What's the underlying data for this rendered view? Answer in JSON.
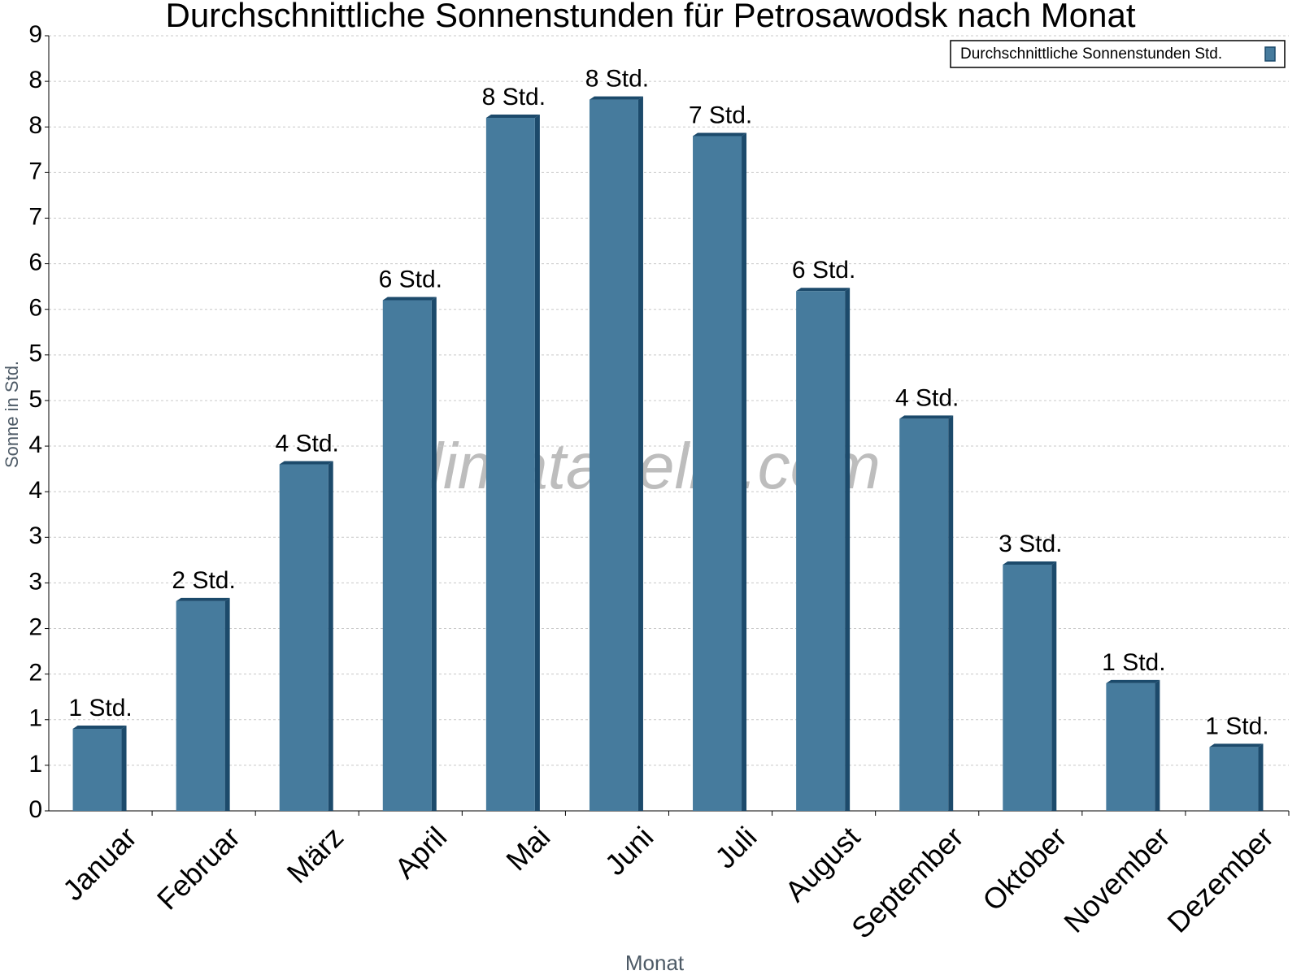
{
  "chart_data": {
    "type": "bar",
    "title": "Durchschnittliche Sonnenstunden für Petrosawodsk nach Monat",
    "x_label": "Monat",
    "y_label": "Sonne in Std.",
    "watermark": "klimatabelle.com",
    "categories": [
      "Januar",
      "Februar",
      "März",
      "April",
      "Mai",
      "Juni",
      "Juli",
      "August",
      "September",
      "Oktober",
      "November",
      "Dezember"
    ],
    "series": [
      {
        "name": "Durchschnittliche Sonnenstunden Std.",
        "color": "#467b9d",
        "values": [
          0.9,
          2.3,
          3.8,
          5.6,
          7.6,
          7.8,
          7.4,
          5.7,
          4.3,
          2.7,
          1.4,
          0.7
        ],
        "value_labels": [
          "1 Std.",
          "2 Std.",
          "4 Std.",
          "6 Std.",
          "8 Std.",
          "8 Std.",
          "7 Std.",
          "6 Std.",
          "4 Std.",
          "3 Std.",
          "1 Std.",
          "1 Std."
        ]
      }
    ],
    "ylim": [
      0,
      8.5
    ],
    "yticks": [
      0,
      {
        "value": 0.5,
        "label": "1"
      },
      1,
      {
        "value": 1.5,
        "label": "2"
      },
      2,
      {
        "value": 2.5,
        "label": "3"
      },
      3,
      {
        "value": 3.5,
        "label": "4"
      },
      4,
      {
        "value": 4.5,
        "label": "5"
      },
      5,
      {
        "value": 5.5,
        "label": "6"
      },
      6,
      {
        "value": 6.5,
        "label": "7"
      },
      7,
      {
        "value": 7.5,
        "label": "8"
      },
      8,
      {
        "value": 8.5,
        "label": "9"
      }
    ],
    "grid": true,
    "legend": "top-right"
  }
}
